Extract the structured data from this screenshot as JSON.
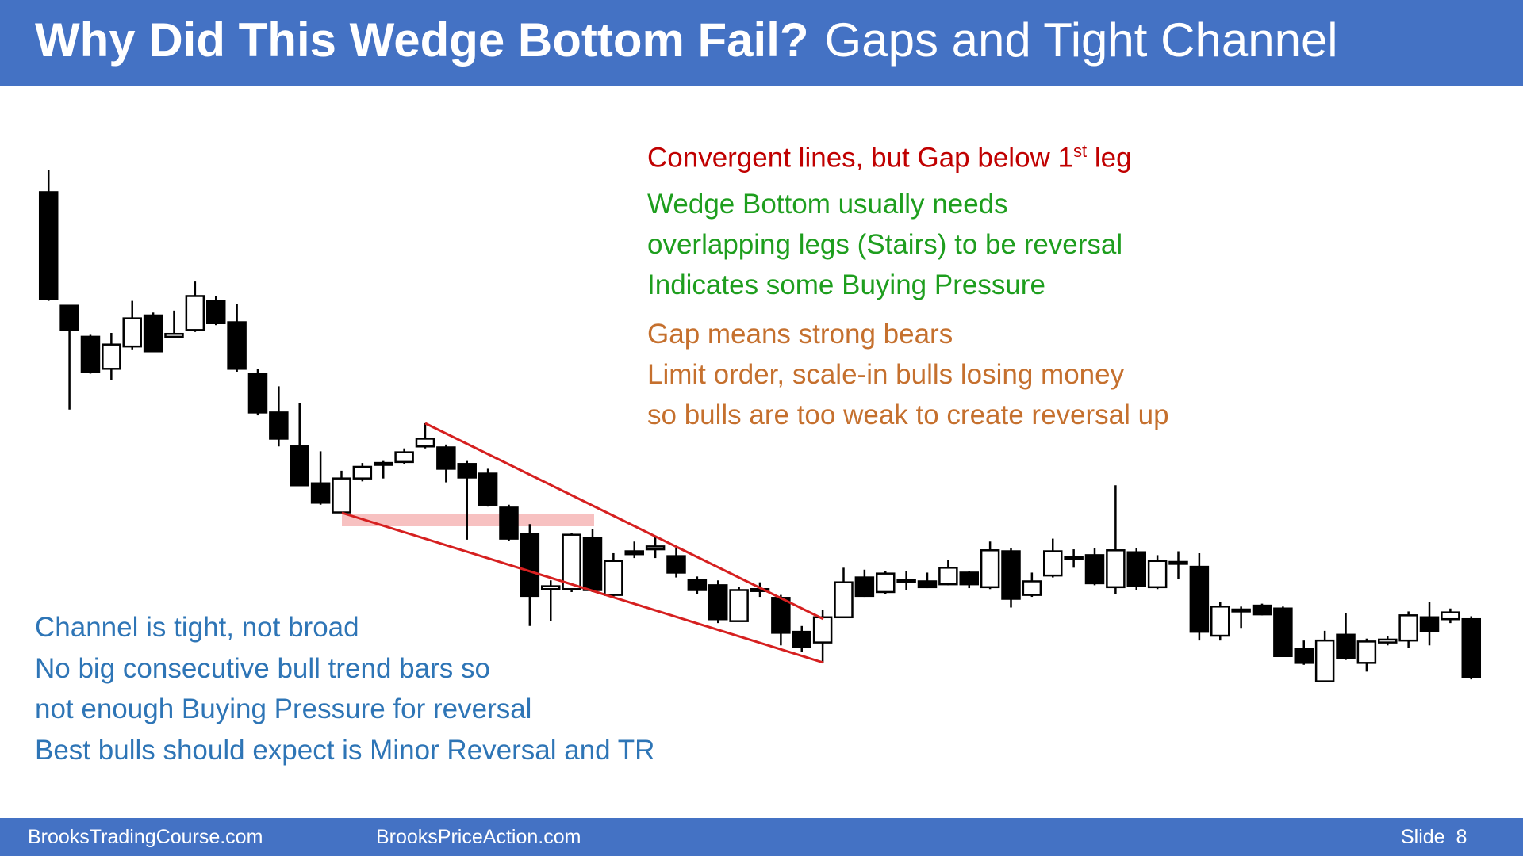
{
  "chart_data": {
    "type": "candlestick",
    "title": "Why Did This Wedge Bottom Fail?",
    "subtitle": "Gaps and Tight Channel",
    "ylim": [
      0,
      882
    ],
    "bull_color": "#ffffff",
    "bear_color": "#000000",
    "open": [
      684,
      567,
      535,
      502,
      525,
      557,
      535,
      542,
      572,
      550,
      497,
      457,
      422,
      384,
      354,
      389,
      403,
      406,
      422,
      421,
      404,
      394,
      359,
      332,
      275,
      275,
      328,
      269,
      314,
      316,
      309,
      284,
      279,
      242,
      275,
      266,
      231,
      220,
      246,
      287,
      272,
      282,
      283,
      280,
      292,
      277,
      314,
      269,
      289,
      306,
      310,
      277,
      313,
      277,
      301,
      298,
      227,
      252,
      258,
      255,
      213,
      180,
      228,
      199,
      220,
      222,
      246,
      244,
      244
    ],
    "high": [
      707,
      567,
      537,
      539,
      572,
      560,
      562,
      592,
      577,
      569,
      502,
      484,
      467,
      417,
      397,
      405,
      407,
      420,
      446,
      424,
      407,
      399,
      362,
      342,
      284,
      333,
      337,
      312,
      324,
      329,
      317,
      288,
      284,
      277,
      282,
      269,
      237,
      254,
      297,
      295,
      294,
      294,
      292,
      305,
      294,
      324,
      317,
      292,
      327,
      316,
      317,
      382,
      317,
      310,
      314,
      312,
      262,
      257,
      260,
      257,
      222,
      232,
      250,
      224,
      227,
      252,
      262,
      255,
      247
    ],
    "low": [
      572,
      460,
      497,
      490,
      522,
      519,
      534,
      540,
      547,
      499,
      454,
      422,
      382,
      362,
      354,
      386,
      389,
      404,
      420,
      385,
      326,
      360,
      325,
      237,
      242,
      272,
      272,
      267,
      307,
      307,
      287,
      270,
      240,
      242,
      267,
      217,
      210,
      199,
      245,
      267,
      270,
      274,
      276,
      279,
      276,
      275,
      256,
      267,
      287,
      297,
      279,
      270,
      274,
      275,
      285,
      222,
      222,
      235,
      248,
      206,
      197,
      179,
      202,
      190,
      217,
      214,
      217,
      240,
      182
    ],
    "close": [
      574,
      542,
      499,
      527,
      554,
      520,
      538,
      577,
      549,
      502,
      457,
      430,
      382,
      364,
      389,
      401,
      405,
      416,
      430,
      399,
      390,
      362,
      327,
      268,
      278,
      331,
      274,
      304,
      311,
      319,
      292,
      274,
      244,
      274,
      273,
      230,
      215,
      246,
      282,
      268,
      291,
      284,
      277,
      297,
      280,
      315,
      265,
      283,
      314,
      308,
      281,
      315,
      278,
      304,
      303,
      231,
      257,
      254,
      249,
      206,
      199,
      222,
      204,
      221,
      223,
      248,
      232,
      251,
      184
    ],
    "annotations": [
      {
        "text": "Convergent lines, but Gap below 1",
        "sup": "st",
        "tail": " leg",
        "color": "#c00000"
      },
      {
        "text": "Wedge Bottom usually needs",
        "color": "#1e9e1e"
      },
      {
        "text": "overlapping legs (Stairs) to be reversal",
        "color": "#1e9e1e"
      },
      {
        "text": "Indicates some Buying Pressure",
        "color": "#1e9e1e"
      },
      {
        "text": "Gap means strong bears",
        "color": "#c5702e"
      },
      {
        "text": "Limit order, scale-in bulls losing money",
        "color": "#c5702e"
      },
      {
        "text": "so bulls are too weak to create reversal up",
        "color": "#c5702e"
      },
      {
        "text": "Channel is tight, not broad",
        "color": "#2e75b6"
      },
      {
        "text": "No big consecutive bull trend bars so",
        "color": "#2e75b6"
      },
      {
        "text": "not enough Buying Pressure for reversal",
        "color": "#2e75b6"
      },
      {
        "text": "Best bulls should expect is Minor Reversal and TR",
        "color": "#2e75b6"
      }
    ]
  },
  "footer": {
    "left": "BrooksTradingCourse.com",
    "middle": "BrooksPriceAction.com",
    "slide": "Slide  8"
  }
}
